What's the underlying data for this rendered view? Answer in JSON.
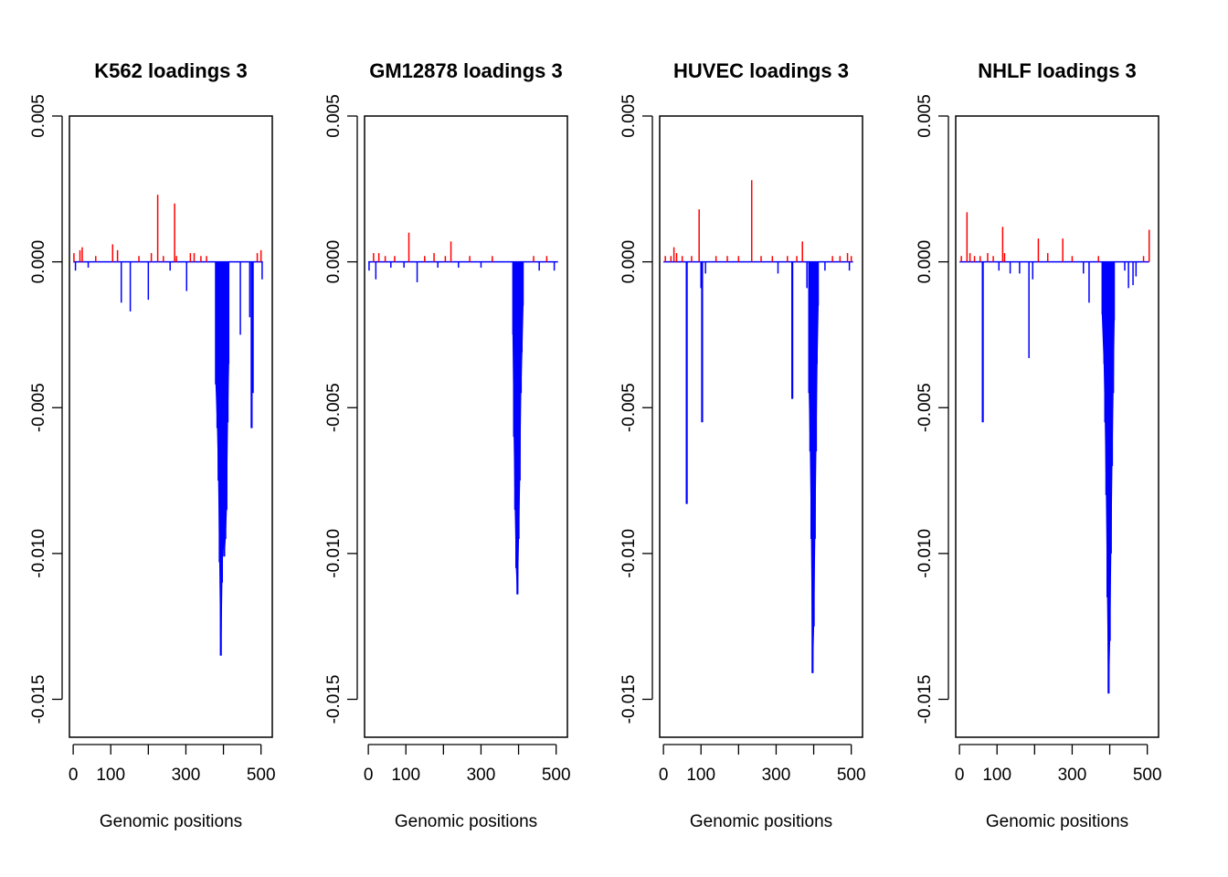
{
  "colors": {
    "positive": "#ff0000",
    "negative": "#0000ff",
    "axis": "#000000"
  },
  "chart_data": [
    {
      "type": "bar",
      "title": "K562 loadings 3",
      "xlabel": "Genomic positions",
      "ylabel": "",
      "xlim": [
        -10,
        530
      ],
      "ylim": [
        -0.0163,
        0.005
      ],
      "xticks": [
        0,
        100,
        200,
        300,
        400,
        500
      ],
      "xtick_labels": [
        "0",
        "100",
        "",
        "300",
        "",
        "500"
      ],
      "yticks": [
        0.005,
        0.0,
        -0.005,
        -0.01,
        -0.015
      ],
      "ytick_labels": [
        "0.005",
        "0.000",
        "-0.005",
        "-0.010",
        "-0.015"
      ],
      "spikes": [
        {
          "x": 2,
          "y": 0.0003
        },
        {
          "x": 6,
          "y": -0.0003
        },
        {
          "x": 18,
          "y": 0.0004
        },
        {
          "x": 24,
          "y": 0.0005
        },
        {
          "x": 40,
          "y": -0.0002
        },
        {
          "x": 60,
          "y": 0.0002
        },
        {
          "x": 105,
          "y": 0.0006
        },
        {
          "x": 118,
          "y": 0.0004
        },
        {
          "x": 128,
          "y": -0.0014
        },
        {
          "x": 152,
          "y": -0.0017
        },
        {
          "x": 175,
          "y": 0.0002
        },
        {
          "x": 200,
          "y": -0.0013
        },
        {
          "x": 208,
          "y": 0.0003
        },
        {
          "x": 225,
          "y": 0.0023
        },
        {
          "x": 240,
          "y": 0.0002
        },
        {
          "x": 258,
          "y": -0.0003
        },
        {
          "x": 270,
          "y": 0.002
        },
        {
          "x": 275,
          "y": 0.0002
        },
        {
          "x": 302,
          "y": -0.001
        },
        {
          "x": 312,
          "y": 0.0003
        },
        {
          "x": 322,
          "y": 0.0003
        },
        {
          "x": 340,
          "y": 0.0002
        },
        {
          "x": 355,
          "y": 0.0002
        },
        {
          "x": 380,
          "y": -0.0042
        },
        {
          "x": 384,
          "y": -0.0057
        },
        {
          "x": 387,
          "y": -0.0075
        },
        {
          "x": 390,
          "y": -0.0103
        },
        {
          "x": 393,
          "y": -0.0135
        },
        {
          "x": 396,
          "y": -0.011
        },
        {
          "x": 399,
          "y": -0.0094
        },
        {
          "x": 402,
          "y": -0.0101
        },
        {
          "x": 405,
          "y": -0.0095
        },
        {
          "x": 408,
          "y": -0.0085
        },
        {
          "x": 411,
          "y": -0.0055
        },
        {
          "x": 414,
          "y": -0.0035
        },
        {
          "x": 445,
          "y": -0.0025
        },
        {
          "x": 470,
          "y": -0.0019
        },
        {
          "x": 475,
          "y": -0.0057
        },
        {
          "x": 478,
          "y": -0.0045
        },
        {
          "x": 490,
          "y": 0.0003
        },
        {
          "x": 500,
          "y": 0.0004
        },
        {
          "x": 503,
          "y": -0.0006
        }
      ]
    },
    {
      "type": "bar",
      "title": "GM12878 loadings 3",
      "xlabel": "Genomic positions",
      "ylabel": "",
      "xlim": [
        -10,
        530
      ],
      "ylim": [
        -0.0163,
        0.005
      ],
      "xticks": [
        0,
        100,
        200,
        300,
        400,
        500
      ],
      "xtick_labels": [
        "0",
        "100",
        "",
        "300",
        "",
        "500"
      ],
      "yticks": [
        0.005,
        0.0,
        -0.005,
        -0.01,
        -0.015
      ],
      "ytick_labels": [
        "0.005",
        "0.000",
        "-0.005",
        "-0.010",
        "-0.015"
      ],
      "spikes": [
        {
          "x": 2,
          "y": -0.0003
        },
        {
          "x": 14,
          "y": 0.0003
        },
        {
          "x": 20,
          "y": -0.0006
        },
        {
          "x": 28,
          "y": 0.0003
        },
        {
          "x": 45,
          "y": 0.0002
        },
        {
          "x": 60,
          "y": -0.0002
        },
        {
          "x": 70,
          "y": 0.0002
        },
        {
          "x": 95,
          "y": -0.0002
        },
        {
          "x": 108,
          "y": 0.001
        },
        {
          "x": 130,
          "y": -0.0007
        },
        {
          "x": 150,
          "y": 0.0002
        },
        {
          "x": 175,
          "y": 0.0003
        },
        {
          "x": 185,
          "y": -0.0002
        },
        {
          "x": 205,
          "y": 0.0002
        },
        {
          "x": 220,
          "y": 0.0007
        },
        {
          "x": 240,
          "y": -0.0002
        },
        {
          "x": 270,
          "y": 0.0002
        },
        {
          "x": 300,
          "y": -0.0002
        },
        {
          "x": 330,
          "y": 0.0002
        },
        {
          "x": 385,
          "y": -0.0025
        },
        {
          "x": 388,
          "y": -0.006
        },
        {
          "x": 391,
          "y": -0.0085
        },
        {
          "x": 394,
          "y": -0.0105
        },
        {
          "x": 397,
          "y": -0.0114
        },
        {
          "x": 400,
          "y": -0.0095
        },
        {
          "x": 403,
          "y": -0.0075
        },
        {
          "x": 406,
          "y": -0.0045
        },
        {
          "x": 409,
          "y": -0.0031
        },
        {
          "x": 412,
          "y": -0.0015
        },
        {
          "x": 440,
          "y": 0.0002
        },
        {
          "x": 455,
          "y": -0.0003
        },
        {
          "x": 475,
          "y": 0.0002
        },
        {
          "x": 495,
          "y": -0.0003
        }
      ]
    },
    {
      "type": "bar",
      "title": "HUVEC loadings 3",
      "xlabel": "Genomic positions",
      "ylabel": "",
      "xlim": [
        -10,
        530
      ],
      "ylim": [
        -0.0163,
        0.005
      ],
      "xticks": [
        0,
        100,
        200,
        300,
        400,
        500
      ],
      "xtick_labels": [
        "0",
        "100",
        "",
        "300",
        "",
        "500"
      ],
      "yticks": [
        0.005,
        0.0,
        -0.005,
        -0.01,
        -0.015
      ],
      "ytick_labels": [
        "0.005",
        "0.000",
        "-0.005",
        "-0.010",
        "-0.015"
      ],
      "spikes": [
        {
          "x": 5,
          "y": 0.0002
        },
        {
          "x": 20,
          "y": 0.0002
        },
        {
          "x": 28,
          "y": 0.0005
        },
        {
          "x": 35,
          "y": 0.0003
        },
        {
          "x": 50,
          "y": 0.0002
        },
        {
          "x": 62,
          "y": -0.0083
        },
        {
          "x": 75,
          "y": 0.0002
        },
        {
          "x": 95,
          "y": 0.0018
        },
        {
          "x": 100,
          "y": -0.0009
        },
        {
          "x": 103,
          "y": -0.0055
        },
        {
          "x": 112,
          "y": -0.0004
        },
        {
          "x": 140,
          "y": 0.0002
        },
        {
          "x": 170,
          "y": 0.0002
        },
        {
          "x": 200,
          "y": 0.0002
        },
        {
          "x": 235,
          "y": 0.0028
        },
        {
          "x": 260,
          "y": 0.0002
        },
        {
          "x": 290,
          "y": 0.0002
        },
        {
          "x": 305,
          "y": -0.0004
        },
        {
          "x": 330,
          "y": 0.0002
        },
        {
          "x": 343,
          "y": -0.0047
        },
        {
          "x": 355,
          "y": 0.0002
        },
        {
          "x": 370,
          "y": 0.0007
        },
        {
          "x": 382,
          "y": -0.0009
        },
        {
          "x": 388,
          "y": -0.0045
        },
        {
          "x": 391,
          "y": -0.0065
        },
        {
          "x": 394,
          "y": -0.0095
        },
        {
          "x": 397,
          "y": -0.0141
        },
        {
          "x": 400,
          "y": -0.0125
        },
        {
          "x": 403,
          "y": -0.0095
        },
        {
          "x": 406,
          "y": -0.0065
        },
        {
          "x": 409,
          "y": -0.0035
        },
        {
          "x": 412,
          "y": -0.0015
        },
        {
          "x": 430,
          "y": -0.0003
        },
        {
          "x": 450,
          "y": 0.0002
        },
        {
          "x": 470,
          "y": 0.0002
        },
        {
          "x": 490,
          "y": 0.0003
        },
        {
          "x": 495,
          "y": -0.0003
        },
        {
          "x": 500,
          "y": 0.0002
        }
      ]
    },
    {
      "type": "bar",
      "title": "NHLF loadings 3",
      "xlabel": "Genomic positions",
      "ylabel": "",
      "xlim": [
        -10,
        530
      ],
      "ylim": [
        -0.0163,
        0.005
      ],
      "xticks": [
        0,
        100,
        200,
        300,
        400,
        500
      ],
      "xtick_labels": [
        "0",
        "100",
        "",
        "300",
        "",
        "500"
      ],
      "yticks": [
        0.005,
        0.0,
        -0.005,
        -0.01,
        -0.015
      ],
      "ytick_labels": [
        "0.005",
        "0.000",
        "-0.005",
        "-0.010",
        "-0.015"
      ],
      "spikes": [
        {
          "x": 5,
          "y": 0.0002
        },
        {
          "x": 20,
          "y": 0.0017
        },
        {
          "x": 28,
          "y": 0.0003
        },
        {
          "x": 40,
          "y": 0.0002
        },
        {
          "x": 55,
          "y": 0.0002
        },
        {
          "x": 62,
          "y": -0.0055
        },
        {
          "x": 75,
          "y": 0.0003
        },
        {
          "x": 90,
          "y": 0.0002
        },
        {
          "x": 105,
          "y": -0.0003
        },
        {
          "x": 115,
          "y": 0.0012
        },
        {
          "x": 120,
          "y": 0.0003
        },
        {
          "x": 135,
          "y": -0.0004
        },
        {
          "x": 160,
          "y": -0.0004
        },
        {
          "x": 185,
          "y": -0.0033
        },
        {
          "x": 195,
          "y": -0.0006
        },
        {
          "x": 210,
          "y": 0.0008
        },
        {
          "x": 235,
          "y": 0.0003
        },
        {
          "x": 275,
          "y": 0.0008
        },
        {
          "x": 300,
          "y": 0.0002
        },
        {
          "x": 330,
          "y": -0.0004
        },
        {
          "x": 345,
          "y": -0.0014
        },
        {
          "x": 370,
          "y": 0.0002
        },
        {
          "x": 380,
          "y": -0.0018
        },
        {
          "x": 385,
          "y": -0.0035
        },
        {
          "x": 388,
          "y": -0.0055
        },
        {
          "x": 391,
          "y": -0.008
        },
        {
          "x": 394,
          "y": -0.0115
        },
        {
          "x": 397,
          "y": -0.0148
        },
        {
          "x": 400,
          "y": -0.013
        },
        {
          "x": 403,
          "y": -0.01
        },
        {
          "x": 406,
          "y": -0.007
        },
        {
          "x": 409,
          "y": -0.0045
        },
        {
          "x": 412,
          "y": -0.002
        },
        {
          "x": 440,
          "y": -0.0003
        },
        {
          "x": 450,
          "y": -0.0009
        },
        {
          "x": 462,
          "y": -0.0008
        },
        {
          "x": 470,
          "y": -0.0005
        },
        {
          "x": 490,
          "y": 0.0002
        },
        {
          "x": 505,
          "y": 0.0011
        }
      ]
    }
  ]
}
